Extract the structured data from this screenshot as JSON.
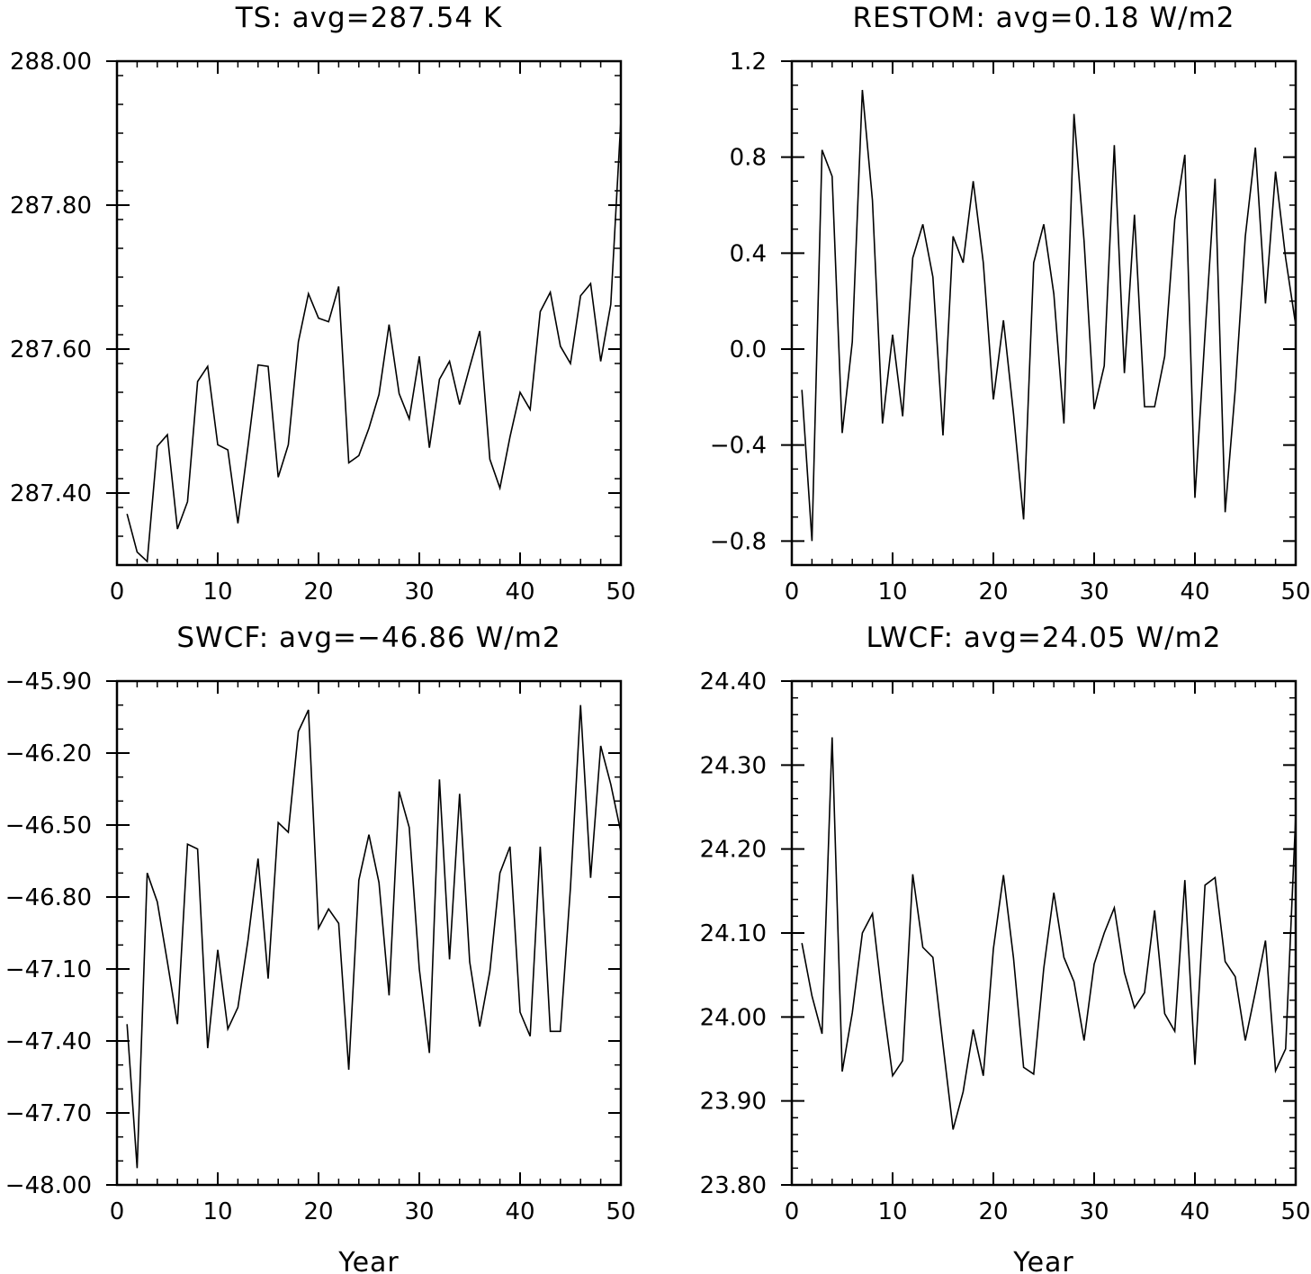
{
  "colors": {
    "line": "#000000",
    "axes": "#000000",
    "background": "#ffffff"
  },
  "chart_data": [
    {
      "type": "line",
      "title": "TS: avg=287.54 K",
      "xlabel": "",
      "ylabel": "",
      "xlim": [
        0,
        50
      ],
      "ylim": [
        287.3,
        288.0
      ],
      "xticks": [
        0,
        10,
        20,
        30,
        40,
        50
      ],
      "xtick_labels": [
        "0",
        "10",
        "20",
        "30",
        "40",
        "50"
      ],
      "yticks": [
        287.4,
        287.6,
        287.8,
        288.0
      ],
      "ytick_labels": [
        "287.40",
        "287.60",
        "287.80",
        "288.00"
      ],
      "yminor_step": 0.04,
      "grid": false,
      "series": [
        {
          "x": [
            1,
            2,
            3,
            4,
            5,
            6,
            7,
            8,
            9,
            10,
            11,
            12,
            13,
            14,
            15,
            16,
            17,
            18,
            19,
            20,
            21,
            22,
            23,
            24,
            25,
            26,
            27,
            28,
            29,
            30,
            31,
            32,
            33,
            34,
            35,
            36,
            37,
            38,
            39,
            40,
            41,
            42,
            43,
            44,
            45,
            46,
            47,
            48,
            49,
            50
          ],
          "values": [
            287.371,
            287.318,
            287.305,
            287.465,
            287.481,
            287.35,
            287.388,
            287.555,
            287.576,
            287.467,
            287.46,
            287.358,
            287.465,
            287.578,
            287.576,
            287.422,
            287.467,
            287.61,
            287.677,
            287.643,
            287.638,
            287.687,
            287.442,
            287.452,
            287.49,
            287.537,
            287.634,
            287.538,
            287.503,
            287.59,
            287.463,
            287.558,
            287.583,
            287.523,
            287.575,
            287.625,
            287.447,
            287.407,
            287.478,
            287.54,
            287.516,
            287.652,
            287.679,
            287.604,
            287.58,
            287.674,
            287.691,
            287.583,
            287.662,
            287.918
          ]
        }
      ]
    },
    {
      "type": "line",
      "title": "RESTOM: avg=0.18 W/m2",
      "xlabel": "",
      "ylabel": "",
      "xlim": [
        0,
        50
      ],
      "ylim": [
        -0.9,
        1.2
      ],
      "xticks": [
        0,
        10,
        20,
        30,
        40,
        50
      ],
      "xtick_labels": [
        "0",
        "10",
        "20",
        "30",
        "40",
        "50"
      ],
      "yticks": [
        -0.8,
        -0.4,
        0.0,
        0.4,
        0.8,
        1.2
      ],
      "ytick_labels": [
        "−0.8",
        "−0.4",
        "0.0",
        "0.4",
        "0.8",
        "1.2"
      ],
      "yminor_step": 0.1,
      "grid": false,
      "series": [
        {
          "x": [
            1,
            2,
            3,
            4,
            5,
            6,
            7,
            8,
            9,
            10,
            11,
            12,
            13,
            14,
            15,
            16,
            17,
            18,
            19,
            20,
            21,
            22,
            23,
            24,
            25,
            26,
            27,
            28,
            29,
            30,
            31,
            32,
            33,
            34,
            35,
            36,
            37,
            38,
            39,
            40,
            41,
            42,
            43,
            44,
            45,
            46,
            47,
            48,
            49,
            50
          ],
          "values": [
            -0.17,
            -0.8,
            0.83,
            0.72,
            -0.35,
            0.03,
            1.08,
            0.62,
            -0.31,
            0.06,
            -0.28,
            0.38,
            0.52,
            0.3,
            -0.36,
            0.47,
            0.36,
            0.7,
            0.36,
            -0.21,
            0.12,
            -0.27,
            -0.71,
            0.36,
            0.52,
            0.23,
            -0.31,
            0.98,
            0.45,
            -0.25,
            -0.07,
            0.85,
            -0.1,
            0.56,
            -0.24,
            -0.24,
            -0.03,
            0.54,
            0.81,
            -0.62,
            0.06,
            0.71,
            -0.68,
            -0.17,
            0.47,
            0.84,
            0.19,
            0.74,
            0.38,
            0.1
          ]
        }
      ]
    },
    {
      "type": "line",
      "title": "SWCF: avg=−46.86 W/m2",
      "xlabel": "Year",
      "ylabel": "",
      "xlim": [
        0,
        50
      ],
      "ylim": [
        -48.0,
        -45.9
      ],
      "xticks": [
        0,
        10,
        20,
        30,
        40,
        50
      ],
      "xtick_labels": [
        "0",
        "10",
        "20",
        "30",
        "40",
        "50"
      ],
      "yticks": [
        -48.0,
        -47.7,
        -47.4,
        -47.1,
        -46.8,
        -46.5,
        -46.2,
        -45.9
      ],
      "ytick_labels": [
        "−48.00",
        "−47.70",
        "−47.40",
        "−47.10",
        "−46.80",
        "−46.50",
        "−46.20",
        "−45.90"
      ],
      "yminor_step": 0.1,
      "grid": false,
      "series": [
        {
          "x": [
            1,
            2,
            3,
            4,
            5,
            6,
            7,
            8,
            9,
            10,
            11,
            12,
            13,
            14,
            15,
            16,
            17,
            18,
            19,
            20,
            21,
            22,
            23,
            24,
            25,
            26,
            27,
            28,
            29,
            30,
            31,
            32,
            33,
            34,
            35,
            36,
            37,
            38,
            39,
            40,
            41,
            42,
            43,
            44,
            45,
            46,
            47,
            48,
            49,
            50
          ],
          "values": [
            -47.33,
            -47.93,
            -46.7,
            -46.82,
            -47.07,
            -47.33,
            -46.58,
            -46.6,
            -47.43,
            -47.02,
            -47.35,
            -47.26,
            -46.98,
            -46.64,
            -47.14,
            -46.49,
            -46.53,
            -46.11,
            -46.02,
            -46.93,
            -46.85,
            -46.91,
            -47.52,
            -46.73,
            -46.54,
            -46.74,
            -47.21,
            -46.36,
            -46.51,
            -47.1,
            -47.45,
            -46.31,
            -47.06,
            -46.37,
            -47.07,
            -47.34,
            -47.11,
            -46.7,
            -46.59,
            -47.28,
            -47.38,
            -46.59,
            -47.36,
            -47.36,
            -46.76,
            -46.0,
            -46.72,
            -46.17,
            -46.33,
            -46.53
          ]
        }
      ]
    },
    {
      "type": "line",
      "title": "LWCF: avg=24.05 W/m2",
      "xlabel": "Year",
      "ylabel": "",
      "xlim": [
        0,
        50
      ],
      "ylim": [
        23.8,
        24.4
      ],
      "xticks": [
        0,
        10,
        20,
        30,
        40,
        50
      ],
      "xtick_labels": [
        "0",
        "10",
        "20",
        "30",
        "40",
        "50"
      ],
      "yticks": [
        23.8,
        23.9,
        24.0,
        24.1,
        24.2,
        24.3,
        24.4
      ],
      "ytick_labels": [
        "23.80",
        "23.90",
        "24.00",
        "24.10",
        "24.20",
        "24.30",
        "24.40"
      ],
      "yminor_step": 0.02,
      "grid": false,
      "series": [
        {
          "x": [
            1,
            2,
            3,
            4,
            5,
            6,
            7,
            8,
            9,
            10,
            11,
            12,
            13,
            14,
            15,
            16,
            17,
            18,
            19,
            20,
            21,
            22,
            23,
            24,
            25,
            26,
            27,
            28,
            29,
            30,
            31,
            32,
            33,
            34,
            35,
            36,
            37,
            38,
            39,
            40,
            41,
            42,
            43,
            44,
            45,
            46,
            47,
            48,
            49,
            50
          ],
          "values": [
            24.088,
            24.025,
            23.98,
            24.333,
            23.935,
            24.005,
            24.1,
            24.123,
            24.02,
            23.93,
            23.948,
            24.17,
            24.083,
            24.071,
            23.967,
            23.866,
            23.911,
            23.985,
            23.93,
            24.081,
            24.169,
            24.07,
            23.94,
            23.932,
            24.058,
            24.148,
            24.071,
            24.042,
            23.972,
            24.063,
            24.1,
            24.13,
            24.053,
            24.011,
            24.029,
            24.127,
            24.004,
            23.983,
            24.163,
            23.943,
            24.157,
            24.166,
            24.066,
            24.048,
            23.972,
            24.03,
            24.091,
            23.936,
            23.962,
            24.24
          ]
        }
      ]
    }
  ]
}
